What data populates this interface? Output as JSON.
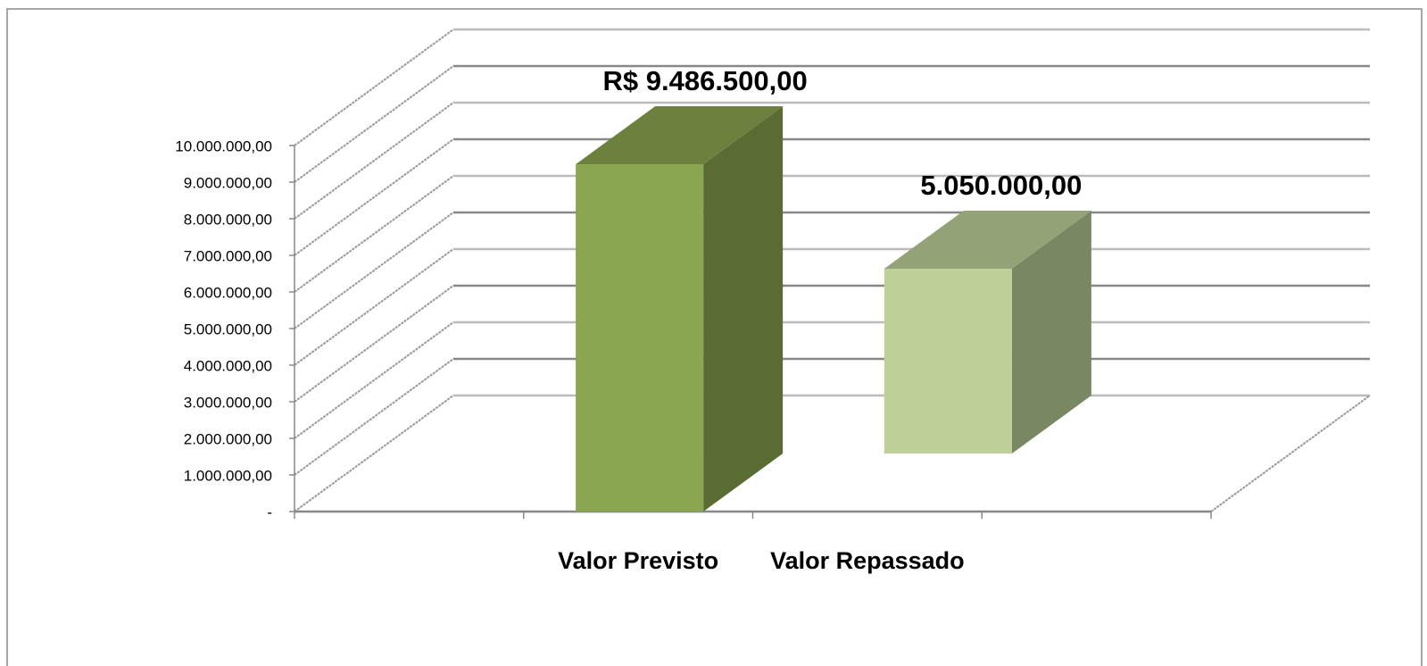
{
  "chart_data": {
    "type": "bar3d",
    "categories": [
      "Valor Previsto",
      "Valor Repassado"
    ],
    "values": [
      9486500,
      5050000
    ],
    "value_labels": [
      "R$ 9.486.500,00",
      "5.050.000,00"
    ],
    "colors": [
      "#8aa650",
      "#bcd098"
    ],
    "ylim": [
      0,
      10000000
    ],
    "yticks": [
      {
        "value": 0,
        "label": "-"
      },
      {
        "value": 1000000,
        "label": "1.000.000,00"
      },
      {
        "value": 2000000,
        "label": "2.000.000,00"
      },
      {
        "value": 3000000,
        "label": "3.000.000,00"
      },
      {
        "value": 4000000,
        "label": "4.000.000,00"
      },
      {
        "value": 5000000,
        "label": "5.000.000,00"
      },
      {
        "value": 6000000,
        "label": "6.000.000,00"
      },
      {
        "value": 7000000,
        "label": "7.000.000,00"
      },
      {
        "value": 8000000,
        "label": "8.000.000,00"
      },
      {
        "value": 9000000,
        "label": "9.000.000,00"
      },
      {
        "value": 10000000,
        "label": "10.000.000,00"
      }
    ],
    "grid": true
  }
}
